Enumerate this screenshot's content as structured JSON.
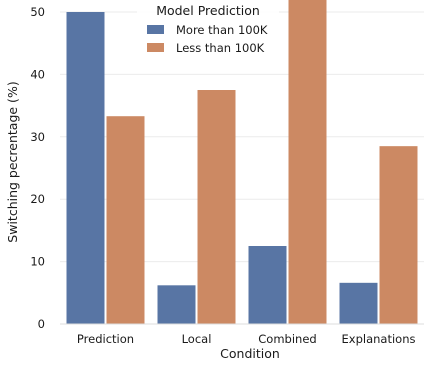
{
  "chart_data": {
    "type": "bar",
    "xlabel": "Condition",
    "ylabel": "Switching pecrentage (%)",
    "categories": [
      "Prediction",
      "Local",
      "Combined",
      "Explanations"
    ],
    "series": [
      {
        "name": "More than 100K",
        "color": "#5875a4",
        "values": [
          50.0,
          6.2,
          12.5,
          6.6
        ]
      },
      {
        "name": "Less than 100K",
        "color": "#cc8963",
        "values": [
          33.3,
          37.5,
          53.0,
          28.5
        ]
      }
    ],
    "ylim": [
      0,
      53
    ],
    "yticks": [
      0,
      10,
      20,
      30,
      40,
      50
    ],
    "grid": true,
    "legend": {
      "title": "Model Prediction",
      "placement": "top-center"
    }
  }
}
